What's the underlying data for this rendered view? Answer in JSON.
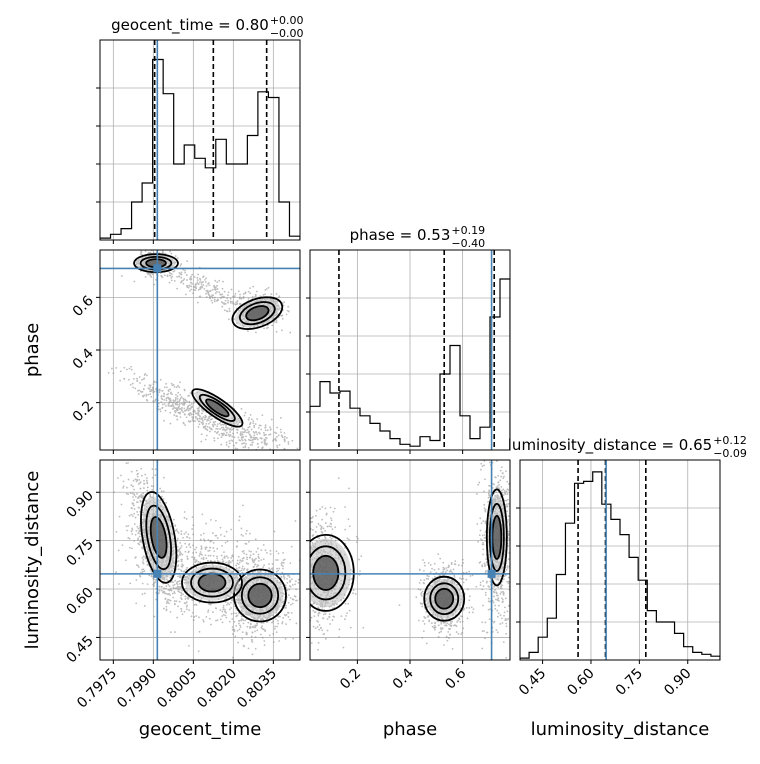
{
  "chart_data": {
    "type": "corner",
    "parameters": [
      "geocent_time",
      "phase",
      "luminosity_distance"
    ],
    "xlabels": [
      "geocent_time",
      "phase",
      "luminosity_distance"
    ],
    "ylabels": [
      "phase",
      "luminosity_distance"
    ],
    "titles": {
      "geocent_time": {
        "prefix": "geocent_time = 0.80",
        "plus": "+0.00",
        "minus": "−0.00"
      },
      "phase": {
        "prefix": "phase = 0.53",
        "plus": "+0.19",
        "minus": "−0.40"
      },
      "luminosity_distance": {
        "prefix": "luminosity_distance = 0.65",
        "plus": "+0.12",
        "minus": "−0.09"
      }
    },
    "ranges": {
      "geocent_time": [
        0.797,
        0.8045
      ],
      "phase": [
        0.02,
        0.78
      ],
      "luminosity_distance": [
        0.38,
        1.0
      ]
    },
    "ticks": {
      "geocent_time": [
        "0.7975",
        "0.7990",
        "0.8005",
        "0.8020",
        "0.8035"
      ],
      "phase": [
        "0.2",
        "0.4",
        "0.6"
      ],
      "luminosity_distance": [
        "0.45",
        "0.60",
        "0.75",
        "0.90"
      ]
    },
    "truths": {
      "geocent_time": 0.79915,
      "phase": 0.71,
      "luminosity_distance": 0.647
    },
    "quantiles": {
      "geocent_time": [
        0.79905,
        0.80125,
        0.80325
      ],
      "phase": [
        0.13,
        0.53,
        0.72
      ],
      "luminosity_distance": [
        0.56,
        0.645,
        0.77
      ]
    },
    "histograms": {
      "geocent_time": [
        0.01,
        0.03,
        0.06,
        0.2,
        0.3,
        0.95,
        0.77,
        0.4,
        0.5,
        0.43,
        0.38,
        0.53,
        0.4,
        0.4,
        0.55,
        0.78,
        0.75,
        0.2,
        0.02
      ],
      "phase": [
        0.23,
        0.36,
        0.3,
        0.31,
        0.22,
        0.18,
        0.14,
        0.1,
        0.06,
        0.03,
        0.02,
        0.07,
        0.05,
        0.4,
        0.55,
        0.18,
        0.06,
        0.12,
        0.7,
        0.9
      ],
      "luminosity_distance": [
        0.01,
        0.04,
        0.12,
        0.22,
        0.45,
        0.72,
        0.93,
        0.94,
        0.99,
        0.82,
        0.74,
        0.66,
        0.54,
        0.42,
        0.26,
        0.2,
        0.2,
        0.14,
        0.07,
        0.04,
        0.03,
        0.02
      ]
    },
    "grid": true
  }
}
